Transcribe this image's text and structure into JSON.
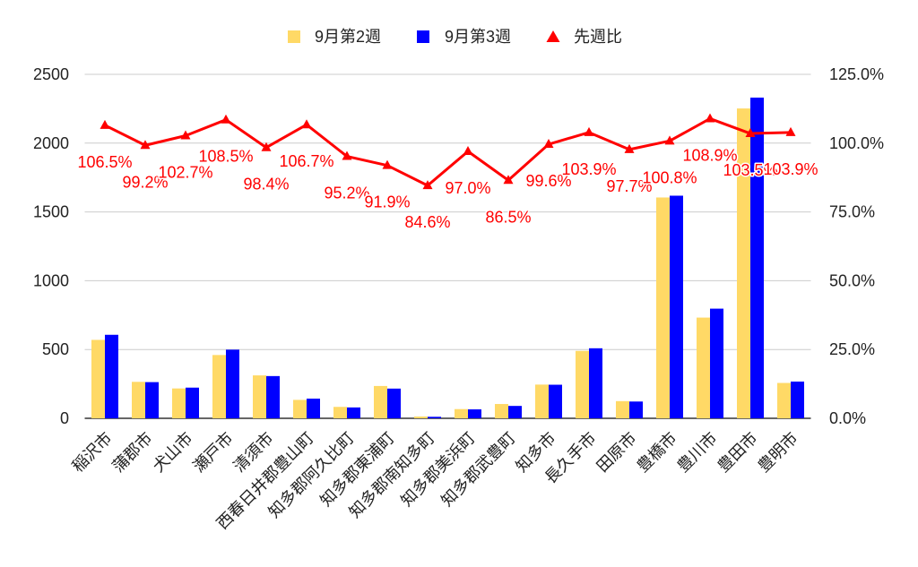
{
  "chart_data": {
    "type": "bar",
    "secondary_type": "line",
    "categories": [
      "稲沢市",
      "蒲郡市",
      "犬山市",
      "瀬戸市",
      "清須市",
      "西春日井郡豊山町",
      "知多郡阿久比町",
      "知多郡東浦町",
      "知多郡南知多町",
      "知多郡美浜町",
      "知多郡武豊町",
      "知多市",
      "長久手市",
      "田原市",
      "豊橋市",
      "豊川市",
      "豊田市",
      "豊明市"
    ],
    "ylim": [
      0,
      2500
    ],
    "y_ticks": [
      0,
      500,
      1000,
      1500,
      2000,
      2500
    ],
    "y2lim": [
      0,
      125
    ],
    "y2_ticks": [
      "0.0%",
      "25.0%",
      "50.0%",
      "75.0%",
      "100.0%",
      "125.0%"
    ],
    "grid": true,
    "legend": "top-center",
    "series": [
      {
        "name": "9月第2週",
        "type": "bar",
        "axis": "left",
        "color": "#FFD966",
        "values": [
          570,
          265,
          217,
          460,
          312,
          134,
          83,
          235,
          13,
          67,
          104,
          245,
          490,
          125,
          1605,
          732,
          2252,
          257
        ]
      },
      {
        "name": "9月第3週",
        "type": "bar",
        "axis": "left",
        "color": "#0000FF",
        "values": [
          607,
          263,
          223,
          499,
          307,
          143,
          79,
          216,
          11,
          65,
          90,
          244,
          509,
          122,
          1618,
          797,
          2331,
          267
        ]
      },
      {
        "name": "先週比",
        "type": "line",
        "axis": "right",
        "color": "#FF0000",
        "marker": "triangle",
        "values": [
          106.5,
          99.2,
          102.7,
          108.5,
          98.4,
          106.7,
          95.2,
          91.9,
          84.6,
          97.0,
          86.5,
          99.6,
          103.9,
          97.7,
          100.8,
          108.9,
          103.5,
          103.9
        ],
        "labels": [
          "106.5%",
          "99.2%",
          "102.7%",
          "108.5%",
          "98.4%",
          "106.7%",
          "95.2%",
          "91.9%",
          "84.6%",
          "97.0%",
          "86.5%",
          "99.6%",
          "103.9%",
          "97.7%",
          "100.8%",
          "108.9%",
          "103.5%",
          "103.9%"
        ]
      }
    ]
  }
}
